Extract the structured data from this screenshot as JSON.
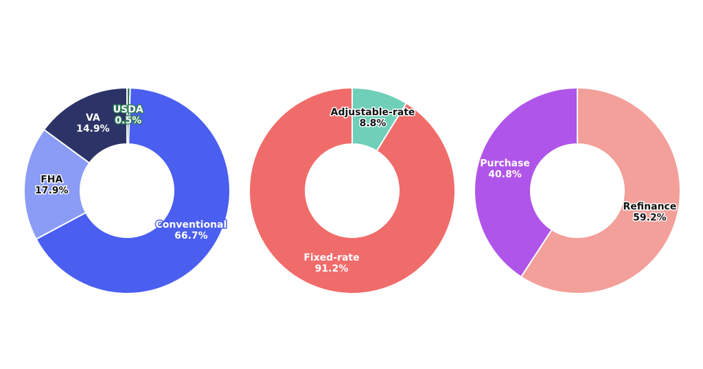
{
  "chart_data": [
    {
      "type": "pie",
      "categories": [
        "USDA",
        "Conventional",
        "FHA",
        "VA"
      ],
      "values": [
        0.5,
        66.7,
        17.9,
        14.9
      ],
      "value_labels": [
        "0.5%",
        "66.7%",
        "17.9%",
        "14.9%"
      ],
      "colors": [
        "#2f7a58",
        "#4a5ef0",
        "#8b9cf6",
        "#2c3366"
      ],
      "label_colors": [
        "#ffffff",
        "#ffffff",
        "#111111",
        "#ffffff"
      ]
    },
    {
      "type": "pie",
      "categories": [
        "Adjustable-rate",
        "Fixed-rate"
      ],
      "values": [
        8.8,
        91.2
      ],
      "value_labels": [
        "8.8%",
        "91.2%"
      ],
      "colors": [
        "#6fcfb9",
        "#f06c6a"
      ],
      "label_colors": [
        "#111111",
        "#ffffff"
      ]
    },
    {
      "type": "pie",
      "categories": [
        "Refinance",
        "Purchase"
      ],
      "values": [
        59.2,
        40.8
      ],
      "value_labels": [
        "59.2%",
        "40.8%"
      ],
      "colors": [
        "#f39f9a",
        "#b055e9"
      ],
      "label_colors": [
        "#111111",
        "#ffffff"
      ]
    }
  ]
}
